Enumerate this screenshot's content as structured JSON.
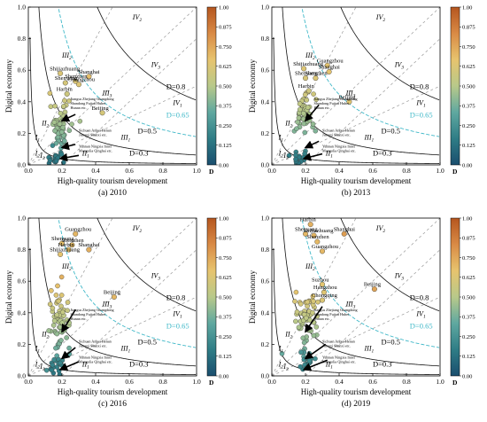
{
  "colors": {
    "ramp": [
      "#1a4e6e",
      "#2f7d86",
      "#5fa8a0",
      "#b8c98a",
      "#e7c46e",
      "#d98a45",
      "#b5561f"
    ],
    "contour": "#111111",
    "dashed_cyan": "#3fb8c8",
    "diag": "#999999"
  },
  "chart_data": [
    {
      "type": "scatter",
      "caption": "(a) 2010",
      "xlabel": "High-quality tourism development",
      "ylabel": "Digital economy",
      "xlim": [
        0,
        1
      ],
      "ylim": [
        0,
        1
      ],
      "xticks": [
        "0.0",
        "0.2",
        "0.4",
        "0.6",
        "0.8",
        "1.0"
      ],
      "yticks": [
        "0.0",
        "0.2",
        "0.4",
        "0.6",
        "0.8",
        "1.0"
      ],
      "contours": [
        "D=0.3",
        "D=0.5",
        "D=0.65",
        "D=0.8"
      ],
      "regions": [
        "I1",
        "I2",
        "I3",
        "II1",
        "II2",
        "III1",
        "III2",
        "III3",
        "IV1",
        "IV2",
        "IV3"
      ],
      "colorbar": {
        "ticks": [
          "0.00",
          "0.125",
          "0.250",
          "0.375",
          "0.500",
          "0.625",
          "0.750",
          "0.875",
          "1.00"
        ],
        "label": "D"
      },
      "labeled_points": [
        {
          "label": "Shijiazhuang",
          "x": 0.19,
          "y": 0.58,
          "d": 0.62
        },
        {
          "label": "Shanghai",
          "x": 0.36,
          "y": 0.56,
          "d": 0.68
        },
        {
          "label": "Shenyang",
          "x": 0.22,
          "y": 0.52,
          "d": 0.6
        },
        {
          "label": "Shenzhen",
          "x": 0.28,
          "y": 0.53,
          "d": 0.62
        },
        {
          "label": "Guangzhou",
          "x": 0.3,
          "y": 0.51,
          "d": 0.63
        },
        {
          "label": "Harbin",
          "x": 0.23,
          "y": 0.45,
          "d": 0.57
        },
        {
          "label": "Beijing",
          "x": 0.44,
          "y": 0.33,
          "d": 0.6
        }
      ],
      "group_labels": [
        "Jiangsu Zhejiang Guangdong Shandong Fujian Hubei Hunan etc.",
        "Sichuan Anhui Henan Jiangxi Shanxi etc.",
        "Yunnan Ningxia Inner Mongolia Qinghai etc."
      ],
      "clusters": [
        {
          "cx": 0.19,
          "cy": 0.25,
          "sx": 0.03,
          "sy": 0.07,
          "n": 60,
          "d": 0.45
        },
        {
          "cx": 0.16,
          "cy": 0.04,
          "sx": 0.03,
          "sy": 0.025,
          "n": 18,
          "d": 0.15
        }
      ],
      "arrows": [
        [
          0.28,
          0.32
        ],
        [
          0.28,
          0.13
        ],
        [
          0.3,
          0.06
        ]
      ]
    },
    {
      "type": "scatter",
      "caption": "(b) 2013",
      "xlabel": "High-quality tourism development",
      "ylabel": "Digital economy",
      "xlim": [
        0,
        1
      ],
      "ylim": [
        0,
        1
      ],
      "xticks": [
        "0.0",
        "0.2",
        "0.4",
        "0.6",
        "0.8",
        "1.0"
      ],
      "yticks": [
        "0.0",
        "0.2",
        "0.4",
        "0.6",
        "0.8",
        "1.0"
      ],
      "contours": [
        "D=0.3",
        "D=0.5",
        "D=0.65",
        "D=0.8"
      ],
      "regions": [
        "I1",
        "I2",
        "I3",
        "II1",
        "II2",
        "III1",
        "III2",
        "III3",
        "IV1",
        "IV2",
        "IV3"
      ],
      "colorbar": {
        "ticks": [
          "0.00",
          "0.125",
          "0.250",
          "0.375",
          "0.500",
          "0.625",
          "0.750",
          "0.875",
          "1.00"
        ],
        "label": "D"
      },
      "labeled_points": [
        {
          "label": "Guangzhou",
          "x": 0.33,
          "y": 0.63,
          "d": 0.66
        },
        {
          "label": "Shijiazhuang",
          "x": 0.19,
          "y": 0.61,
          "d": 0.63
        },
        {
          "label": "Shanghai",
          "x": 0.34,
          "y": 0.59,
          "d": 0.66
        },
        {
          "label": "Shenyang",
          "x": 0.2,
          "y": 0.55,
          "d": 0.61
        },
        {
          "label": "Shenzhen",
          "x": 0.26,
          "y": 0.55,
          "d": 0.62
        },
        {
          "label": "Harbin",
          "x": 0.22,
          "y": 0.47,
          "d": 0.58
        },
        {
          "label": "Beijing",
          "x": 0.46,
          "y": 0.4,
          "d": 0.64
        }
      ],
      "group_labels": [
        "Jiangsu Zhejiang Guangdong Shandong Fujian Hubei Hunan etc.",
        "Sichuan Anhui Henan Jiangxi Shanxi etc.",
        "Yunnan Ningxia Inner Mongolia Qinghai etc."
      ],
      "clusters": [
        {
          "cx": 0.19,
          "cy": 0.32,
          "sx": 0.03,
          "sy": 0.07,
          "n": 60,
          "d": 0.48
        },
        {
          "cx": 0.17,
          "cy": 0.05,
          "sx": 0.03,
          "sy": 0.025,
          "n": 18,
          "d": 0.17
        }
      ],
      "arrows": [
        [
          0.28,
          0.38
        ],
        [
          0.28,
          0.15
        ],
        [
          0.3,
          0.07
        ]
      ]
    },
    {
      "type": "scatter",
      "caption": "(c) 2016",
      "xlabel": "High-quality tourism development",
      "ylabel": "Digital economy",
      "xlim": [
        0,
        1
      ],
      "ylim": [
        0,
        1
      ],
      "xticks": [
        "0.0",
        "0.2",
        "0.4",
        "0.6",
        "0.8",
        "1.0"
      ],
      "yticks": [
        "0.0",
        "0.2",
        "0.4",
        "0.6",
        "0.8",
        "1.0"
      ],
      "contours": [
        "D=0.3",
        "D=0.5",
        "D=0.65",
        "D=0.8"
      ],
      "regions": [
        "I1",
        "I2",
        "I3",
        "II1",
        "II2",
        "III1",
        "III2",
        "III3",
        "IV1",
        "IV2",
        "IV3"
      ],
      "colorbar": {
        "ticks": [
          "0.00",
          "0.125",
          "0.250",
          "0.375",
          "0.500",
          "0.625",
          "0.750",
          "0.875",
          "1.00"
        ],
        "label": "D"
      },
      "labeled_points": [
        {
          "label": "Guangzhou",
          "x": 0.28,
          "y": 0.9,
          "d": 0.71
        },
        {
          "label": "Shenyang",
          "x": 0.2,
          "y": 0.84,
          "d": 0.68
        },
        {
          "label": "Shenzhen",
          "x": 0.26,
          "y": 0.83,
          "d": 0.69
        },
        {
          "label": "Harbin",
          "x": 0.24,
          "y": 0.8,
          "d": 0.67
        },
        {
          "label": "Shijiazhuang",
          "x": 0.19,
          "y": 0.77,
          "d": 0.66
        },
        {
          "label": "Shanghai",
          "x": 0.36,
          "y": 0.8,
          "d": 0.73
        },
        {
          "label": "Beijing",
          "x": 0.51,
          "y": 0.5,
          "d": 0.7
        }
      ],
      "group_labels": [
        "Jiangsu Zhejiang Guangdong Shandong Fujian Hubei Hunan etc.",
        "Sichuan Anhui Henan Jiangxi Shanxi etc.",
        "Yunnan Ningxia Inner Mongolia Qinghai etc."
      ],
      "clusters": [
        {
          "cx": 0.19,
          "cy": 0.35,
          "sx": 0.03,
          "sy": 0.09,
          "n": 65,
          "d": 0.5
        },
        {
          "cx": 0.17,
          "cy": 0.08,
          "sx": 0.025,
          "sy": 0.03,
          "n": 18,
          "d": 0.2
        }
      ],
      "arrows": [
        [
          0.28,
          0.42
        ],
        [
          0.28,
          0.18
        ],
        [
          0.3,
          0.09
        ]
      ]
    },
    {
      "type": "scatter",
      "caption": "(d) 2019",
      "xlabel": "High-quality tourism development",
      "ylabel": "Digital economy",
      "xlim": [
        0,
        1
      ],
      "ylim": [
        0,
        1
      ],
      "xticks": [
        "0.0",
        "0.2",
        "0.4",
        "0.6",
        "0.8",
        "1.0"
      ],
      "yticks": [
        "0.0",
        "0.2",
        "0.4",
        "0.6",
        "0.8",
        "1.0"
      ],
      "contours": [
        "D=0.3",
        "D=0.5",
        "D=0.65",
        "D=0.8"
      ],
      "regions": [
        "I1",
        "I2",
        "I3",
        "II1",
        "II2",
        "III1",
        "III2",
        "III3",
        "IV1",
        "IV2",
        "IV3"
      ],
      "colorbar": {
        "ticks": [
          "0.00",
          "0.125",
          "0.250",
          "0.375",
          "0.500",
          "0.625",
          "0.750",
          "0.875",
          "1.00"
        ],
        "label": "D"
      },
      "labeled_points": [
        {
          "label": "Harbin",
          "x": 0.23,
          "y": 0.96,
          "d": 0.72
        },
        {
          "label": "Shenyang",
          "x": 0.2,
          "y": 0.9,
          "d": 0.7
        },
        {
          "label": "Shijiazhuang",
          "x": 0.25,
          "y": 0.89,
          "d": 0.71
        },
        {
          "label": "Shanghai",
          "x": 0.43,
          "y": 0.9,
          "d": 0.78
        },
        {
          "label": "Shenzhen",
          "x": 0.27,
          "y": 0.85,
          "d": 0.7
        },
        {
          "label": "Guangzhou",
          "x": 0.3,
          "y": 0.79,
          "d": 0.7
        },
        {
          "label": "Suzhou",
          "x": 0.3,
          "y": 0.58,
          "d": 0.65
        },
        {
          "label": "Beijing",
          "x": 0.61,
          "y": 0.55,
          "d": 0.76
        },
        {
          "label": "Hangzhou",
          "x": 0.31,
          "y": 0.53,
          "d": 0.64
        },
        {
          "label": "Chongqing",
          "x": 0.3,
          "y": 0.48,
          "d": 0.62
        }
      ],
      "group_labels": [
        "Jiangsu Zhejiang Guangdong Shandong Fujian Hubei Hunan etc.",
        "Sichuan Anhui Henan Jiangxi Shanxi etc.",
        "Yunnan Ningxia Inner Mongolia Qinghai etc."
      ],
      "clusters": [
        {
          "cx": 0.21,
          "cy": 0.36,
          "sx": 0.035,
          "sy": 0.09,
          "n": 65,
          "d": 0.52
        },
        {
          "cx": 0.2,
          "cy": 0.09,
          "sx": 0.03,
          "sy": 0.03,
          "n": 18,
          "d": 0.22
        }
      ],
      "arrows": [
        [
          0.3,
          0.44
        ],
        [
          0.32,
          0.2
        ],
        [
          0.33,
          0.1
        ]
      ]
    }
  ]
}
